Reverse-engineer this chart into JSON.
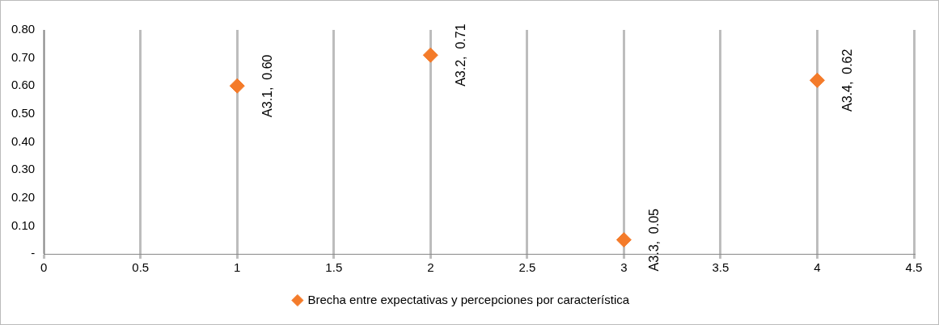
{
  "chart_data": {
    "type": "scatter",
    "x": [
      1,
      2,
      3,
      4
    ],
    "series": [
      {
        "name": "Brecha entre expectativas y percepciones por característica",
        "color": "#f47b2a",
        "values": [
          0.6,
          0.71,
          0.05,
          0.62
        ]
      }
    ],
    "xlim": [
      0,
      4.5
    ],
    "xticks": [
      0,
      0.5,
      1,
      1.5,
      2,
      2.5,
      3,
      3.5,
      4,
      4.5
    ],
    "ylim": [
      0,
      0.8
    ],
    "yticks": [
      {
        "value": 0,
        "label": "-"
      },
      {
        "value": 0.1,
        "label": "0.10"
      },
      {
        "value": 0.2,
        "label": "0.20"
      },
      {
        "value": 0.3,
        "label": "0.30"
      },
      {
        "value": 0.4,
        "label": "0.40"
      },
      {
        "value": 0.5,
        "label": "0.50"
      },
      {
        "value": 0.6,
        "label": "0.60"
      },
      {
        "value": 0.7,
        "label": "0.70"
      },
      {
        "value": 0.8,
        "label": "0.80"
      }
    ],
    "grid": "x",
    "legend": "bottom",
    "marker": "diamond",
    "annotations": [
      {
        "text": "A3.1,  0.60",
        "x": 1,
        "y": 0.6
      },
      {
        "text": "A3.2,  0.71",
        "x": 2,
        "y": 0.71
      },
      {
        "text": "A3.3,  0.05",
        "x": 3,
        "y": 0.05
      },
      {
        "text": "A3.4,  0.62",
        "x": 4,
        "y": 0.62
      }
    ]
  }
}
